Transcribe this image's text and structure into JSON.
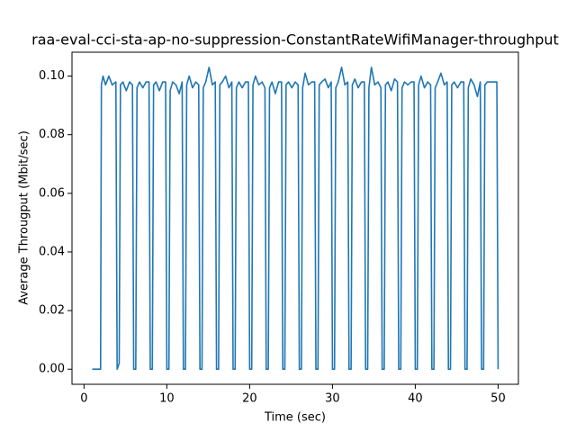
{
  "chart_data": {
    "type": "line",
    "title": "raa-eval-cci-sta-ap-no-suppression-ConstantRateWifiManager-throughput",
    "x_label": "Time (sec)",
    "y_label": "Average Througput (Mbit/sec)",
    "color": "#1f77b4",
    "x": [
      1,
      2,
      2.1,
      2.3,
      2.6,
      3.0,
      3.4,
      3.85,
      4,
      4.25,
      4.4,
      4.7,
      5.1,
      5.5,
      5.85,
      6,
      6.25,
      6.4,
      6.7,
      7.1,
      7.5,
      7.85,
      8,
      8.25,
      8.4,
      8.7,
      9.1,
      9.5,
      9.85,
      10,
      10.25,
      10.4,
      10.7,
      11.1,
      11.5,
      11.85,
      12,
      12.25,
      12.4,
      12.7,
      13.1,
      13.5,
      13.85,
      14,
      14.25,
      14.4,
      14.7,
      15.1,
      15.5,
      15.85,
      16,
      16.25,
      16.4,
      16.7,
      17.1,
      17.5,
      17.85,
      18,
      18.25,
      18.4,
      18.7,
      19.1,
      19.5,
      19.85,
      20,
      20.25,
      20.4,
      20.7,
      21.1,
      21.5,
      21.85,
      22,
      22.25,
      22.4,
      22.7,
      23.1,
      23.5,
      23.85,
      24,
      24.25,
      24.4,
      24.7,
      25.1,
      25.5,
      25.85,
      26,
      26.25,
      26.4,
      26.7,
      27.1,
      27.5,
      27.85,
      28,
      28.25,
      28.4,
      28.7,
      29.1,
      29.5,
      29.85,
      30,
      30.25,
      30.4,
      30.7,
      31.1,
      31.5,
      31.85,
      32,
      32.25,
      32.4,
      32.7,
      33.1,
      33.5,
      33.85,
      34,
      34.25,
      34.4,
      34.7,
      35.1,
      35.5,
      35.85,
      36,
      36.25,
      36.4,
      36.7,
      37.1,
      37.5,
      37.85,
      38,
      38.25,
      38.4,
      38.7,
      39.1,
      39.5,
      39.85,
      40,
      40.25,
      40.4,
      40.7,
      41.1,
      41.5,
      41.85,
      42,
      42.25,
      42.4,
      42.7,
      43.1,
      43.5,
      43.85,
      44,
      44.25,
      44.4,
      44.7,
      45.1,
      45.5,
      45.85,
      46,
      46.25,
      46.4,
      46.7,
      47.1,
      47.5,
      47.85,
      48,
      48.25,
      48.4,
      48.7,
      49.1,
      49.5,
      49.85,
      50
    ],
    "values": [
      0,
      0,
      0.097,
      0.1,
      0.097,
      0.1,
      0.097,
      0.098,
      0,
      0.002,
      0.097,
      0.098,
      0.095,
      0.098,
      0.097,
      0,
      0,
      0.096,
      0.098,
      0.096,
      0.098,
      0.098,
      0,
      0,
      0.097,
      0.098,
      0.095,
      0.098,
      0.098,
      0,
      0,
      0.095,
      0.098,
      0.097,
      0.094,
      0.098,
      0,
      0,
      0.097,
      0.1,
      0.096,
      0.098,
      0.097,
      0,
      0,
      0.096,
      0.098,
      0.103,
      0.097,
      0.098,
      0,
      0,
      0.097,
      0.098,
      0.1,
      0.096,
      0.098,
      0,
      0,
      0.096,
      0.098,
      0.096,
      0.098,
      0.098,
      0,
      0,
      0.097,
      0.1,
      0.097,
      0.098,
      0.096,
      0,
      0,
      0.096,
      0.098,
      0.094,
      0.098,
      0.098,
      0,
      0,
      0.097,
      0.098,
      0.096,
      0.098,
      0.097,
      0,
      0,
      0.096,
      0.101,
      0.097,
      0.098,
      0.098,
      0,
      0,
      0.097,
      0.098,
      0.099,
      0.096,
      0.098,
      0,
      0,
      0.096,
      0.098,
      0.103,
      0.097,
      0.098,
      0,
      0,
      0.097,
      0.099,
      0.096,
      0.098,
      0.098,
      0,
      0,
      0.096,
      0.103,
      0.097,
      0.098,
      0.096,
      0,
      0,
      0.097,
      0.098,
      0.095,
      0.099,
      0.098,
      0,
      0,
      0.096,
      0.098,
      0.097,
      0.098,
      0.098,
      0,
      0,
      0.097,
      0.1,
      0.096,
      0.098,
      0.097,
      0,
      0,
      0.096,
      0.098,
      0.101,
      0.097,
      0.098,
      0,
      0,
      0.097,
      0.098,
      0.096,
      0.098,
      0.098,
      0,
      0,
      0.096,
      0.099,
      0.097,
      0.093,
      0.098,
      0,
      0,
      0.097,
      0.098,
      0.098,
      0.098,
      0.098,
      0
    ],
    "xlim": [
      -1.45,
      52.45
    ],
    "ylim": [
      -0.00515,
      0.10815
    ],
    "xticks": [
      0,
      10,
      20,
      30,
      40,
      50
    ],
    "yticks": [
      {
        "value": 0,
        "label": "0.00"
      },
      {
        "value": 0.02,
        "label": "0.02"
      },
      {
        "value": 0.04,
        "label": "0.04"
      },
      {
        "value": 0.06,
        "label": "0.06"
      },
      {
        "value": 0.08,
        "label": "0.08"
      },
      {
        "value": 0.1,
        "label": "0.10"
      }
    ],
    "grid": false
  }
}
